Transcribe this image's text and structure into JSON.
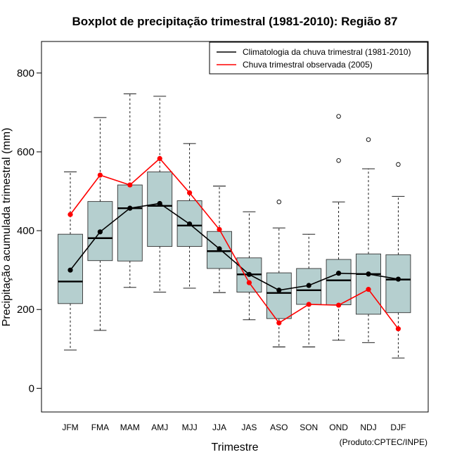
{
  "chart_data": {
    "type": "boxplot",
    "title": "Boxplot de precipitação trimestral (1981-2010): Região 87",
    "xlabel": "Trimestre",
    "ylabel": "Precipitação acumulada trimestral (mm)",
    "ylim": [
      -60,
      880
    ],
    "yticks": [
      0,
      200,
      400,
      600,
      800
    ],
    "categories": [
      "JFM",
      "FMA",
      "MAM",
      "AMJ",
      "MJJ",
      "JJA",
      "JAS",
      "ASO",
      "SON",
      "OND",
      "NDJ",
      "DJF"
    ],
    "boxes": [
      {
        "whisker_low": 97,
        "q1": 215,
        "median": 271,
        "q3": 391,
        "whisker_high": 549,
        "outliers": []
      },
      {
        "whisker_low": 147,
        "q1": 324,
        "median": 381,
        "q3": 474,
        "whisker_high": 687,
        "outliers": []
      },
      {
        "whisker_low": 256,
        "q1": 323,
        "median": 457,
        "q3": 516,
        "whisker_high": 747,
        "outliers": []
      },
      {
        "whisker_low": 244,
        "q1": 360,
        "median": 463,
        "q3": 549,
        "whisker_high": 741,
        "outliers": []
      },
      {
        "whisker_low": 254,
        "q1": 360,
        "median": 413,
        "q3": 476,
        "whisker_high": 621,
        "outliers": []
      },
      {
        "whisker_low": 243,
        "q1": 304,
        "median": 348,
        "q3": 398,
        "whisker_high": 513,
        "outliers": []
      },
      {
        "whisker_low": 174,
        "q1": 244,
        "median": 289,
        "q3": 331,
        "whisker_high": 448,
        "outliers": []
      },
      {
        "whisker_low": 105,
        "q1": 177,
        "median": 242,
        "q3": 293,
        "whisker_high": 407,
        "outliers": [
          473
        ]
      },
      {
        "whisker_low": 105,
        "q1": 213,
        "median": 249,
        "q3": 304,
        "whisker_high": 391,
        "outliers": []
      },
      {
        "whisker_low": 122,
        "q1": 212,
        "median": 274,
        "q3": 327,
        "whisker_high": 473,
        "outliers": [
          578,
          690
        ]
      },
      {
        "whisker_low": 116,
        "q1": 188,
        "median": 290,
        "q3": 341,
        "whisker_high": 557,
        "outliers": [
          631
        ]
      },
      {
        "whisker_low": 77,
        "q1": 192,
        "median": 276,
        "q3": 339,
        "whisker_high": 487,
        "outliers": [
          568
        ]
      }
    ],
    "series": [
      {
        "name": "Climatologia da chuva trimestral (1981-2010)",
        "color": "#000000",
        "values": [
          300,
          397,
          457,
          469,
          417,
          354,
          289,
          249,
          261,
          292,
          290,
          277
        ]
      },
      {
        "name": "Chuva trimestral observada (2005)",
        "color": "#ff0000",
        "values": [
          441,
          541,
          516,
          583,
          496,
          403,
          268,
          166,
          213,
          211,
          251,
          151
        ]
      }
    ],
    "legend_position": "top-right",
    "box_fill": "#b5cfcf",
    "credit": "(Produto:CPTEC/INPE)"
  }
}
